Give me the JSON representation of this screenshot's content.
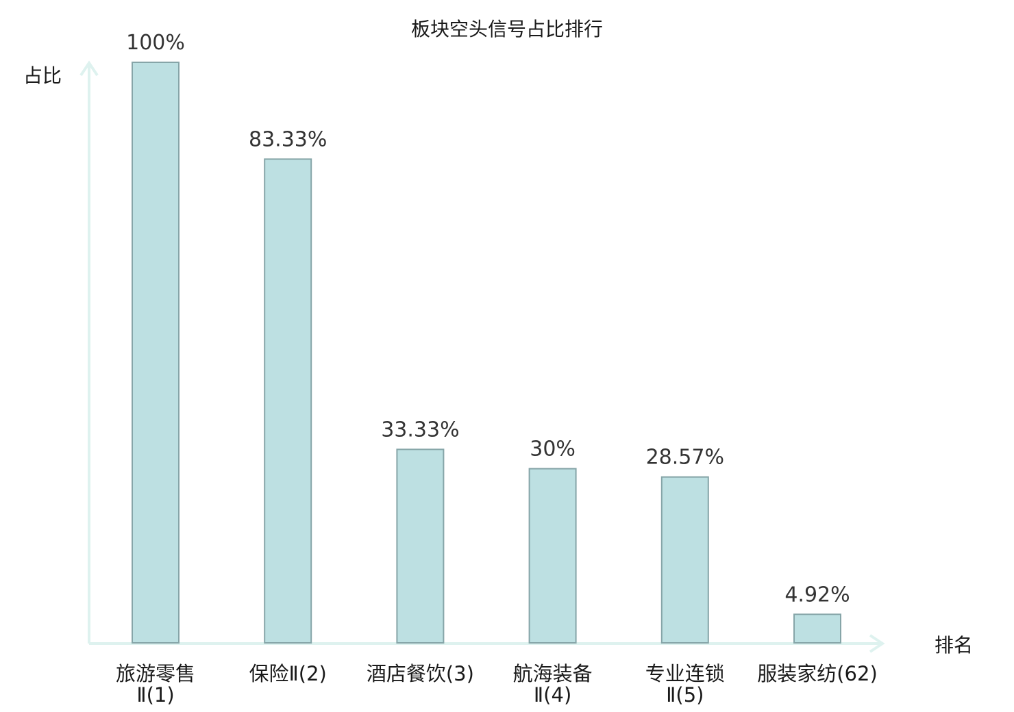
{
  "chart_data": {
    "type": "bar",
    "title": "板块空头信号占比排行",
    "ylabel": "占比",
    "xlabel": "排名",
    "ylim": [
      0,
      100
    ],
    "grid": false,
    "categories": [
      {
        "line1": "旅游零售",
        "line2": "Ⅱ(1)"
      },
      {
        "line1": "保险Ⅱ(2)",
        "line2": ""
      },
      {
        "line1": "酒店餐饮(3)",
        "line2": ""
      },
      {
        "line1": "航海装备",
        "line2": "Ⅱ(4)"
      },
      {
        "line1": "专业连锁",
        "line2": "Ⅱ(5)"
      },
      {
        "line1": "服装家纺(62)",
        "line2": ""
      }
    ],
    "values": [
      100,
      83.33,
      33.33,
      30,
      28.57,
      4.92
    ],
    "value_labels": [
      "100%",
      "83.33%",
      "33.33%",
      "30%",
      "28.57%",
      "4.92%"
    ],
    "highlight_index": 5,
    "colors": {
      "bar_fill": "#bde0e2",
      "bar_stroke": "#86a5a8",
      "axis": "#def2ef",
      "highlight_text": "#e01010",
      "text": "#1a1a1a",
      "value_text": "#333333"
    }
  }
}
